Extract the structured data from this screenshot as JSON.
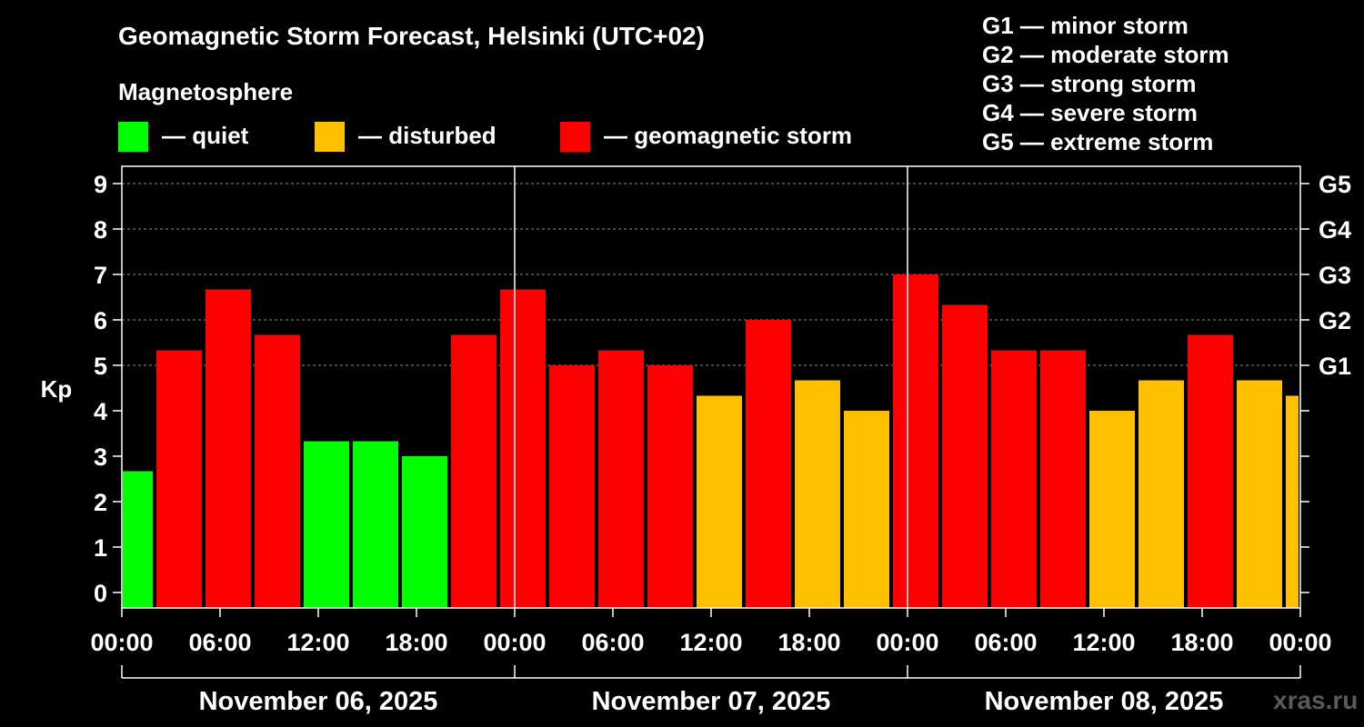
{
  "header": {
    "title": "Geomagnetic Storm Forecast, Helsinki (UTC+02)",
    "subtitle": "Magnetosphere"
  },
  "legend": [
    {
      "label": "— quiet",
      "color": "#00ff00"
    },
    {
      "label": "— disturbed",
      "color": "#ffc000"
    },
    {
      "label": "— geomagnetic storm",
      "color": "#ff0000"
    }
  ],
  "g_scale": [
    "G1 — minor storm",
    "G2 — moderate storm",
    "G3 — strong storm",
    "G4 — severe storm",
    "G5 — extreme storm"
  ],
  "watermark": "xras.ru",
  "chart_data": {
    "type": "bar",
    "title": "Geomagnetic Storm Forecast, Helsinki (UTC+02)",
    "ylabel": "Kp",
    "ylim": [
      0,
      9
    ],
    "y_ticks": [
      "0",
      "1",
      "2",
      "3",
      "4",
      "5",
      "6",
      "7",
      "8",
      "9"
    ],
    "right_levels": [
      {
        "label": "G1",
        "kp": 5
      },
      {
        "label": "G2",
        "kp": 6
      },
      {
        "label": "G3",
        "kp": 7
      },
      {
        "label": "G4",
        "kp": 8
      },
      {
        "label": "G5",
        "kp": 9
      }
    ],
    "x_ticks": [
      "00:00",
      "06:00",
      "12:00",
      "18:00",
      "00:00",
      "06:00",
      "12:00",
      "18:00",
      "00:00",
      "06:00",
      "12:00",
      "18:00",
      "00:00"
    ],
    "days": [
      "November 06, 2025",
      "November 07, 2025",
      "November 08, 2025"
    ],
    "colors": {
      "quiet": "#00ff00",
      "disturbed": "#ffc000",
      "storm": "#ff0000"
    },
    "bars": [
      {
        "start_hour": 0,
        "end_hour": 2,
        "kp": 2.67,
        "level": "quiet"
      },
      {
        "start_hour": 2,
        "end_hour": 5,
        "kp": 5.33,
        "level": "storm"
      },
      {
        "start_hour": 5,
        "end_hour": 8,
        "kp": 6.67,
        "level": "storm"
      },
      {
        "start_hour": 8,
        "end_hour": 11,
        "kp": 5.67,
        "level": "storm"
      },
      {
        "start_hour": 11,
        "end_hour": 14,
        "kp": 3.33,
        "level": "quiet"
      },
      {
        "start_hour": 14,
        "end_hour": 17,
        "kp": 3.33,
        "level": "quiet"
      },
      {
        "start_hour": 17,
        "end_hour": 20,
        "kp": 3.0,
        "level": "quiet"
      },
      {
        "start_hour": 20,
        "end_hour": 23,
        "kp": 5.67,
        "level": "storm"
      },
      {
        "start_hour": 23,
        "end_hour": 26,
        "kp": 6.67,
        "level": "storm"
      },
      {
        "start_hour": 26,
        "end_hour": 29,
        "kp": 5.0,
        "level": "storm"
      },
      {
        "start_hour": 29,
        "end_hour": 32,
        "kp": 5.33,
        "level": "storm"
      },
      {
        "start_hour": 32,
        "end_hour": 35,
        "kp": 5.0,
        "level": "storm"
      },
      {
        "start_hour": 35,
        "end_hour": 38,
        "kp": 4.33,
        "level": "disturbed"
      },
      {
        "start_hour": 38,
        "end_hour": 41,
        "kp": 6.0,
        "level": "storm"
      },
      {
        "start_hour": 41,
        "end_hour": 44,
        "kp": 4.67,
        "level": "disturbed"
      },
      {
        "start_hour": 44,
        "end_hour": 47,
        "kp": 4.0,
        "level": "disturbed"
      },
      {
        "start_hour": 47,
        "end_hour": 50,
        "kp": 7.0,
        "level": "storm"
      },
      {
        "start_hour": 50,
        "end_hour": 53,
        "kp": 6.33,
        "level": "storm"
      },
      {
        "start_hour": 53,
        "end_hour": 56,
        "kp": 5.33,
        "level": "storm"
      },
      {
        "start_hour": 56,
        "end_hour": 59,
        "kp": 5.33,
        "level": "storm"
      },
      {
        "start_hour": 59,
        "end_hour": 62,
        "kp": 4.0,
        "level": "disturbed"
      },
      {
        "start_hour": 62,
        "end_hour": 65,
        "kp": 4.67,
        "level": "disturbed"
      },
      {
        "start_hour": 65,
        "end_hour": 68,
        "kp": 5.67,
        "level": "storm"
      },
      {
        "start_hour": 68,
        "end_hour": 71,
        "kp": 4.67,
        "level": "disturbed"
      },
      {
        "start_hour": 71,
        "end_hour": 72,
        "kp": 4.33,
        "level": "disturbed"
      }
    ]
  }
}
